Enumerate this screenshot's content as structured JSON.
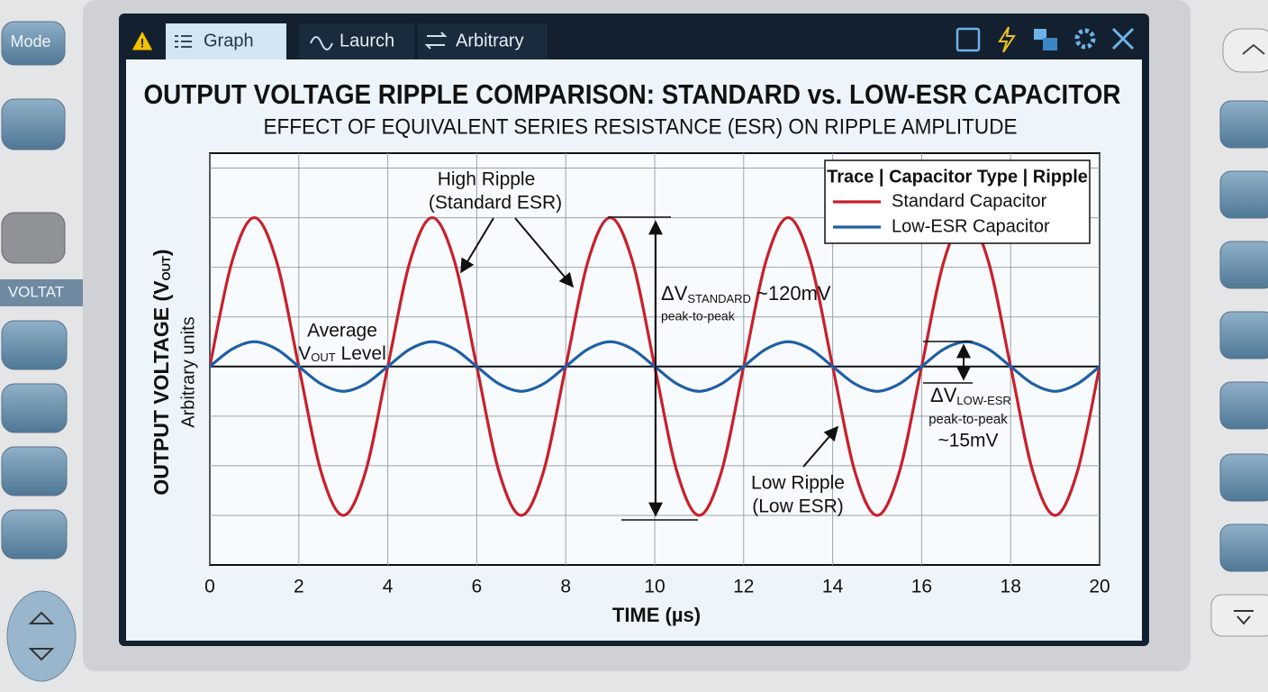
{
  "ui": {
    "tabs": [
      "Graph",
      "Laurch",
      "Arbitrary"
    ],
    "side_buttons": [
      "Mode",
      "VOLTAT"
    ]
  },
  "chart_data": {
    "type": "line",
    "title": "OUTPUT VOLTAGE RIPPLE COMPARISON: STANDARD vs. LOW-ESR CAPACITOR",
    "subtitle": "EFFECT OF EQUIVALENT SERIES RESISTANCE (ESR) ON RIPPLE AMPLITUDE",
    "x_label": "TIME (µs)",
    "y_label": {
      "text": "OUTPUT VOLTAGE (V",
      "sub": "OUT",
      "end": ")",
      "note": "Arbitrary units"
    },
    "x": [
      0,
      0.5,
      1,
      1.5,
      2,
      2.5,
      3,
      3.5,
      4,
      4.5,
      5,
      5.5,
      6,
      6.5,
      7,
      7.5,
      8,
      8.5,
      9,
      9.5,
      10,
      10.5,
      11,
      11.5,
      12,
      12.5,
      13,
      13.5,
      14,
      14.5,
      15,
      15.5,
      16,
      16.5,
      17,
      17.5,
      18,
      18.5,
      19,
      19.5,
      20
    ],
    "series": [
      {
        "name": "Standard Capacitor",
        "color": "#c8202c",
        "values": [
          0,
          2.12,
          3,
          2.12,
          0,
          -2.12,
          -3,
          -2.12,
          0,
          2.12,
          3,
          2.12,
          0,
          -2.12,
          -3,
          -2.12,
          0,
          2.12,
          3,
          2.12,
          0,
          -2.12,
          -3,
          -2.12,
          0,
          2.12,
          3,
          2.12,
          0,
          -2.12,
          -3,
          -2.12,
          0,
          2.12,
          3,
          2.12,
          0,
          -2.12,
          -3,
          -2.12,
          0
        ]
      },
      {
        "name": "Low-ESR Capacitor",
        "color": "#1f5fa6",
        "values": [
          0,
          0.35,
          0.5,
          0.35,
          0,
          -0.35,
          -0.5,
          -0.35,
          0,
          0.35,
          0.5,
          0.35,
          0,
          -0.35,
          -0.5,
          -0.35,
          0,
          0.35,
          0.5,
          0.35,
          0,
          -0.35,
          -0.5,
          -0.35,
          0,
          0.35,
          0.5,
          0.35,
          0,
          -0.35,
          -0.5,
          -0.35,
          0,
          0.35,
          0.5,
          0.35,
          0,
          -0.35,
          -0.5,
          -0.35,
          0
        ]
      }
    ],
    "xlim": [
      0,
      20
    ],
    "xticks": [
      0,
      2,
      4,
      6,
      8,
      10,
      12,
      14,
      16,
      18,
      20
    ],
    "ylim": [
      -4,
      4.3
    ],
    "ygrid": [
      -3,
      -2,
      -1,
      1,
      2,
      3,
      4
    ],
    "reference_line": 0,
    "grid": true,
    "legend": "upper right",
    "legend_title": "Trace | Capacitor Type | Ripple",
    "annotations": {
      "high_ripple": [
        "High Ripple",
        "(Standard ESR)"
      ],
      "average": {
        "line1": "Average",
        "text": "V",
        "sub": "OUT",
        "end": " Level"
      },
      "delta_standard": {
        "text": "ΔV",
        "sub": "STANDARD",
        "value": " ~120mV",
        "note": "peak-to-peak"
      },
      "delta_low_esr": {
        "text": "ΔV",
        "sub": "LOW-ESR",
        "note": "peak-to-peak",
        "value": "~15mV"
      },
      "low_ripple": [
        "Low Ripple",
        "(Low ESR)"
      ]
    }
  }
}
